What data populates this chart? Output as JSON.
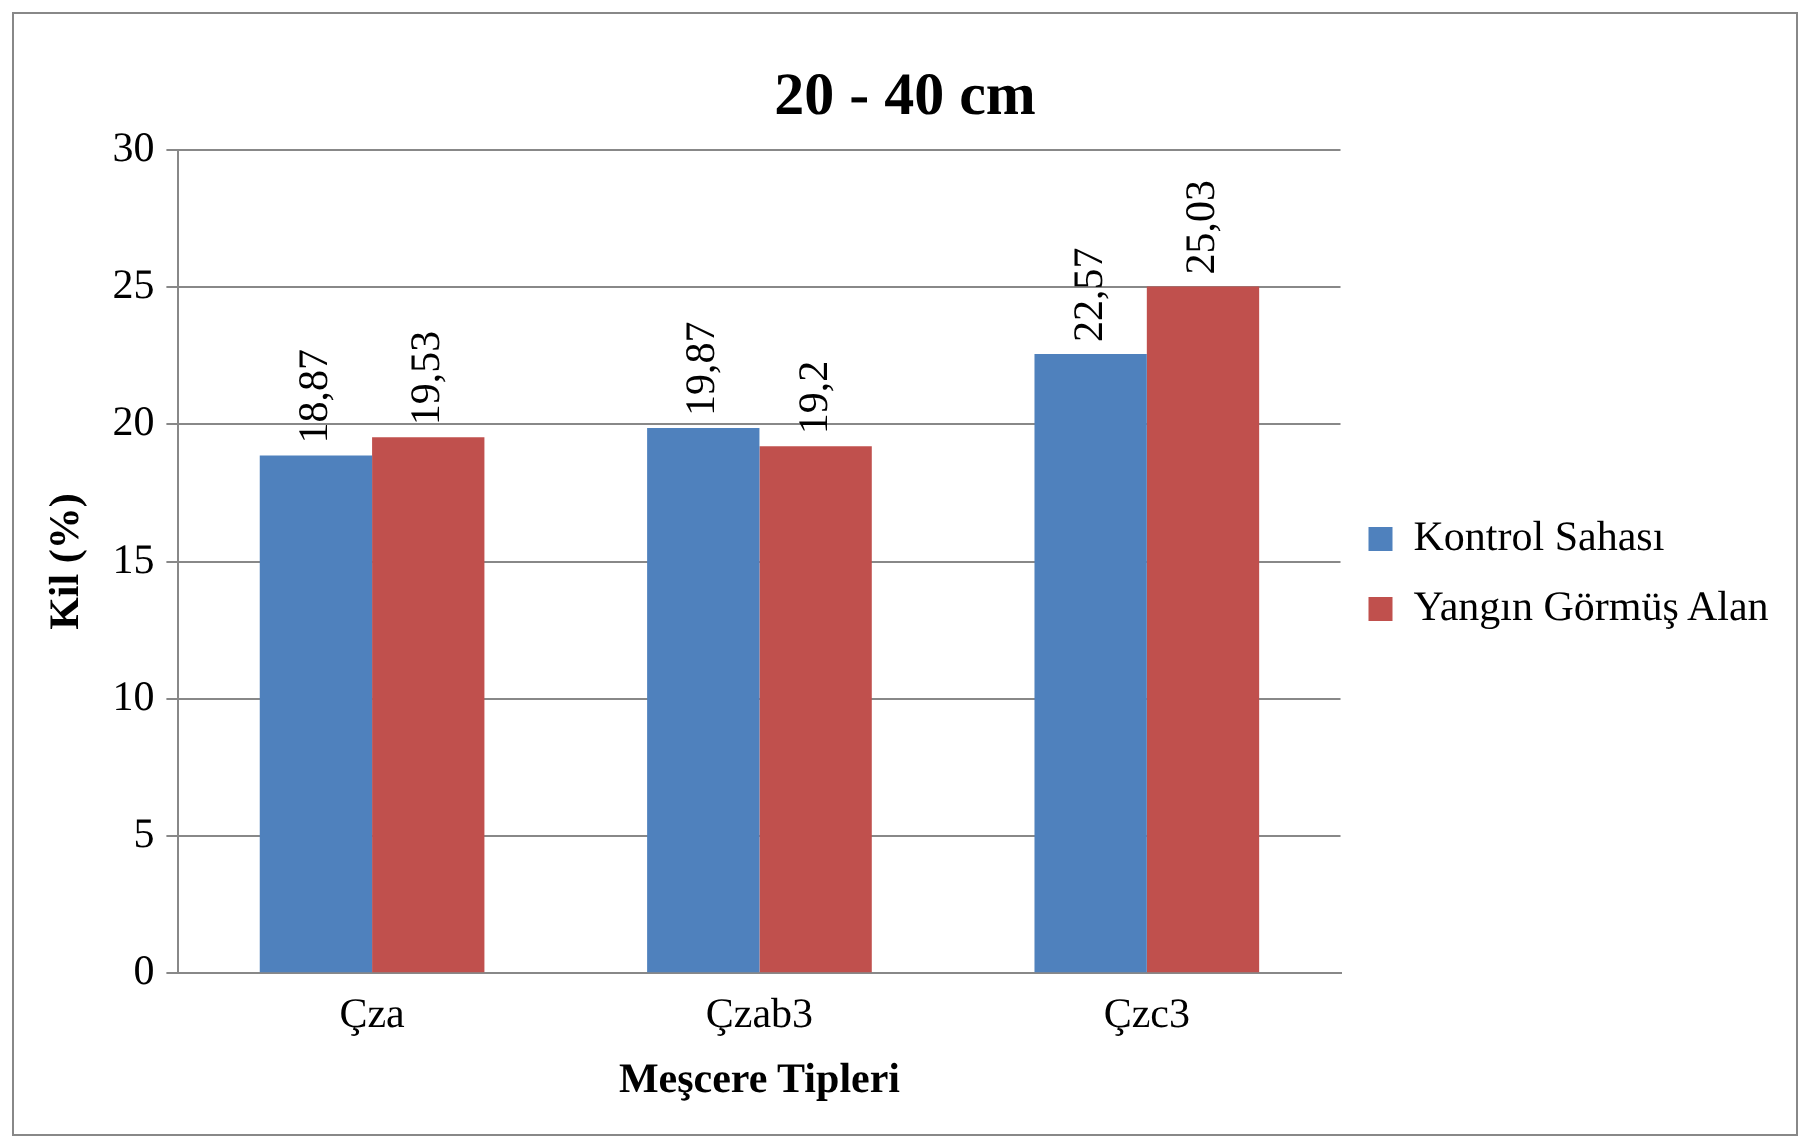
{
  "chart_data": {
    "type": "bar",
    "title": "20 - 40 cm",
    "xlabel": "Meşcere Tipleri",
    "ylabel": "Kil (%)",
    "categories": [
      "Çza",
      "Çzab3",
      "Çzc3"
    ],
    "series": [
      {
        "name": "Kontrol Sahası",
        "color": "#4f81bd",
        "values": [
          18.87,
          19.87,
          22.57
        ],
        "value_labels": [
          "18,87",
          "19,87",
          "22,57"
        ]
      },
      {
        "name": "Yangın Görmüş Alan",
        "color": "#c0504d",
        "values": [
          19.53,
          19.2,
          25.03
        ],
        "value_labels": [
          "19,53",
          "19,2",
          "25,03"
        ]
      }
    ],
    "ylim": [
      0,
      30
    ],
    "yticks": [
      0,
      5,
      10,
      15,
      20,
      25,
      30
    ],
    "grid": "y",
    "legend": "right"
  }
}
